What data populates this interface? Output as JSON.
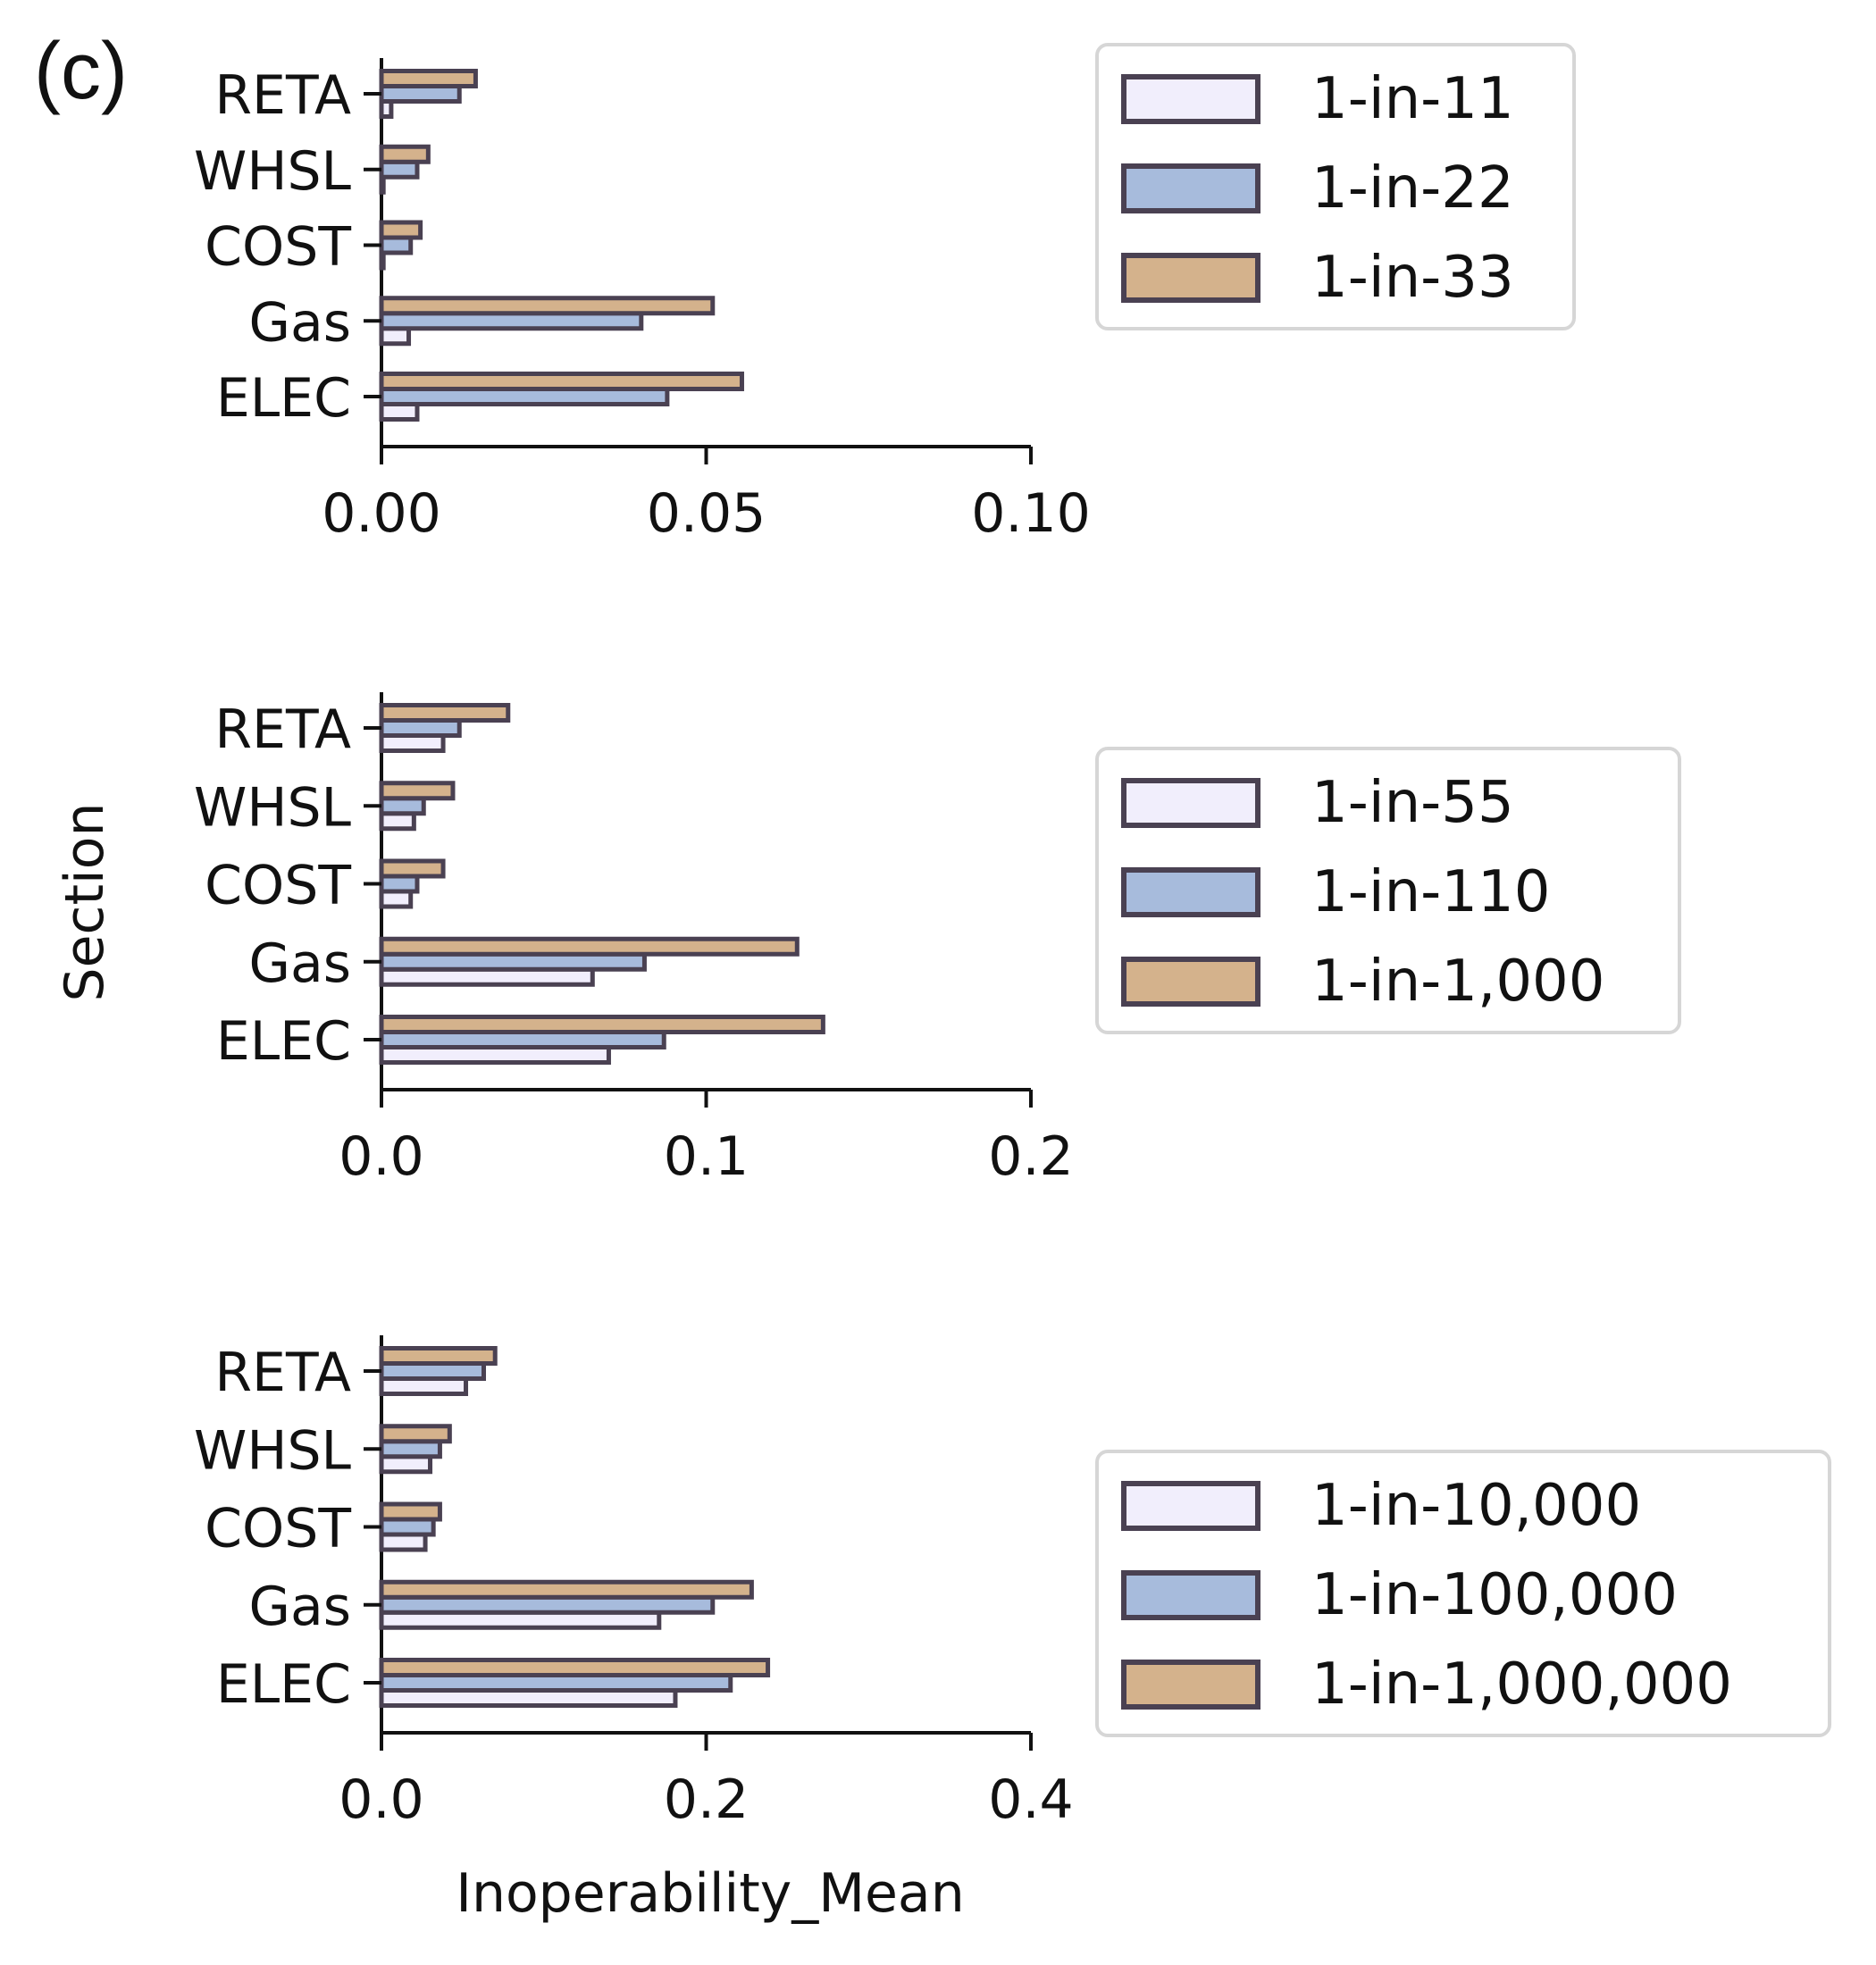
{
  "panel_label": "(c)",
  "ylabel": "Section",
  "xlabel": "Inoperability_Mean",
  "colors": {
    "series1": "#f1eefc",
    "series2": "#a7bbdc",
    "series3": "#d4b28c",
    "edge": "#4a4152",
    "axis": "#111111"
  },
  "chart_data": [
    {
      "type": "bar",
      "orientation": "horizontal",
      "categories": [
        "RETA",
        "WHSL",
        "COST",
        "Gas",
        "ELEC"
      ],
      "series": [
        {
          "name": "1-in-11",
          "values": [
            0.0015,
            0.0003,
            0.0003,
            0.0042,
            0.0055
          ]
        },
        {
          "name": "1-in-22",
          "values": [
            0.012,
            0.0055,
            0.0045,
            0.04,
            0.044
          ]
        },
        {
          "name": "1-in-33",
          "values": [
            0.0145,
            0.0072,
            0.006,
            0.051,
            0.0555
          ]
        }
      ],
      "xlim": [
        0,
        0.1
      ],
      "xticks": [
        "0.00",
        "0.05",
        "0.10"
      ],
      "legend_placement": "right",
      "grid": false
    },
    {
      "type": "bar",
      "orientation": "horizontal",
      "categories": [
        "RETA",
        "WHSL",
        "COST",
        "Gas",
        "ELEC"
      ],
      "series": [
        {
          "name": "1-in-55",
          "values": [
            0.019,
            0.01,
            0.009,
            0.065,
            0.07
          ]
        },
        {
          "name": "1-in-110",
          "values": [
            0.024,
            0.013,
            0.011,
            0.081,
            0.087
          ]
        },
        {
          "name": "1-in-1,000",
          "values": [
            0.039,
            0.022,
            0.019,
            0.128,
            0.136
          ]
        }
      ],
      "xlim": [
        0,
        0.2
      ],
      "xticks": [
        "0.0",
        "0.1",
        "0.2"
      ],
      "legend_placement": "right",
      "grid": false
    },
    {
      "type": "bar",
      "orientation": "horizontal",
      "categories": [
        "RETA",
        "WHSL",
        "COST",
        "Gas",
        "ELEC"
      ],
      "series": [
        {
          "name": "1-in-10,000",
          "values": [
            0.052,
            0.03,
            0.027,
            0.171,
            0.181
          ]
        },
        {
          "name": "1-in-100,000",
          "values": [
            0.063,
            0.036,
            0.032,
            0.204,
            0.215
          ]
        },
        {
          "name": "1-in-1,000,000",
          "values": [
            0.07,
            0.042,
            0.036,
            0.228,
            0.238
          ]
        }
      ],
      "xlim": [
        0,
        0.4
      ],
      "xticks": [
        "0.0",
        "0.2",
        "0.4"
      ],
      "legend_placement": "right",
      "grid": false
    }
  ]
}
